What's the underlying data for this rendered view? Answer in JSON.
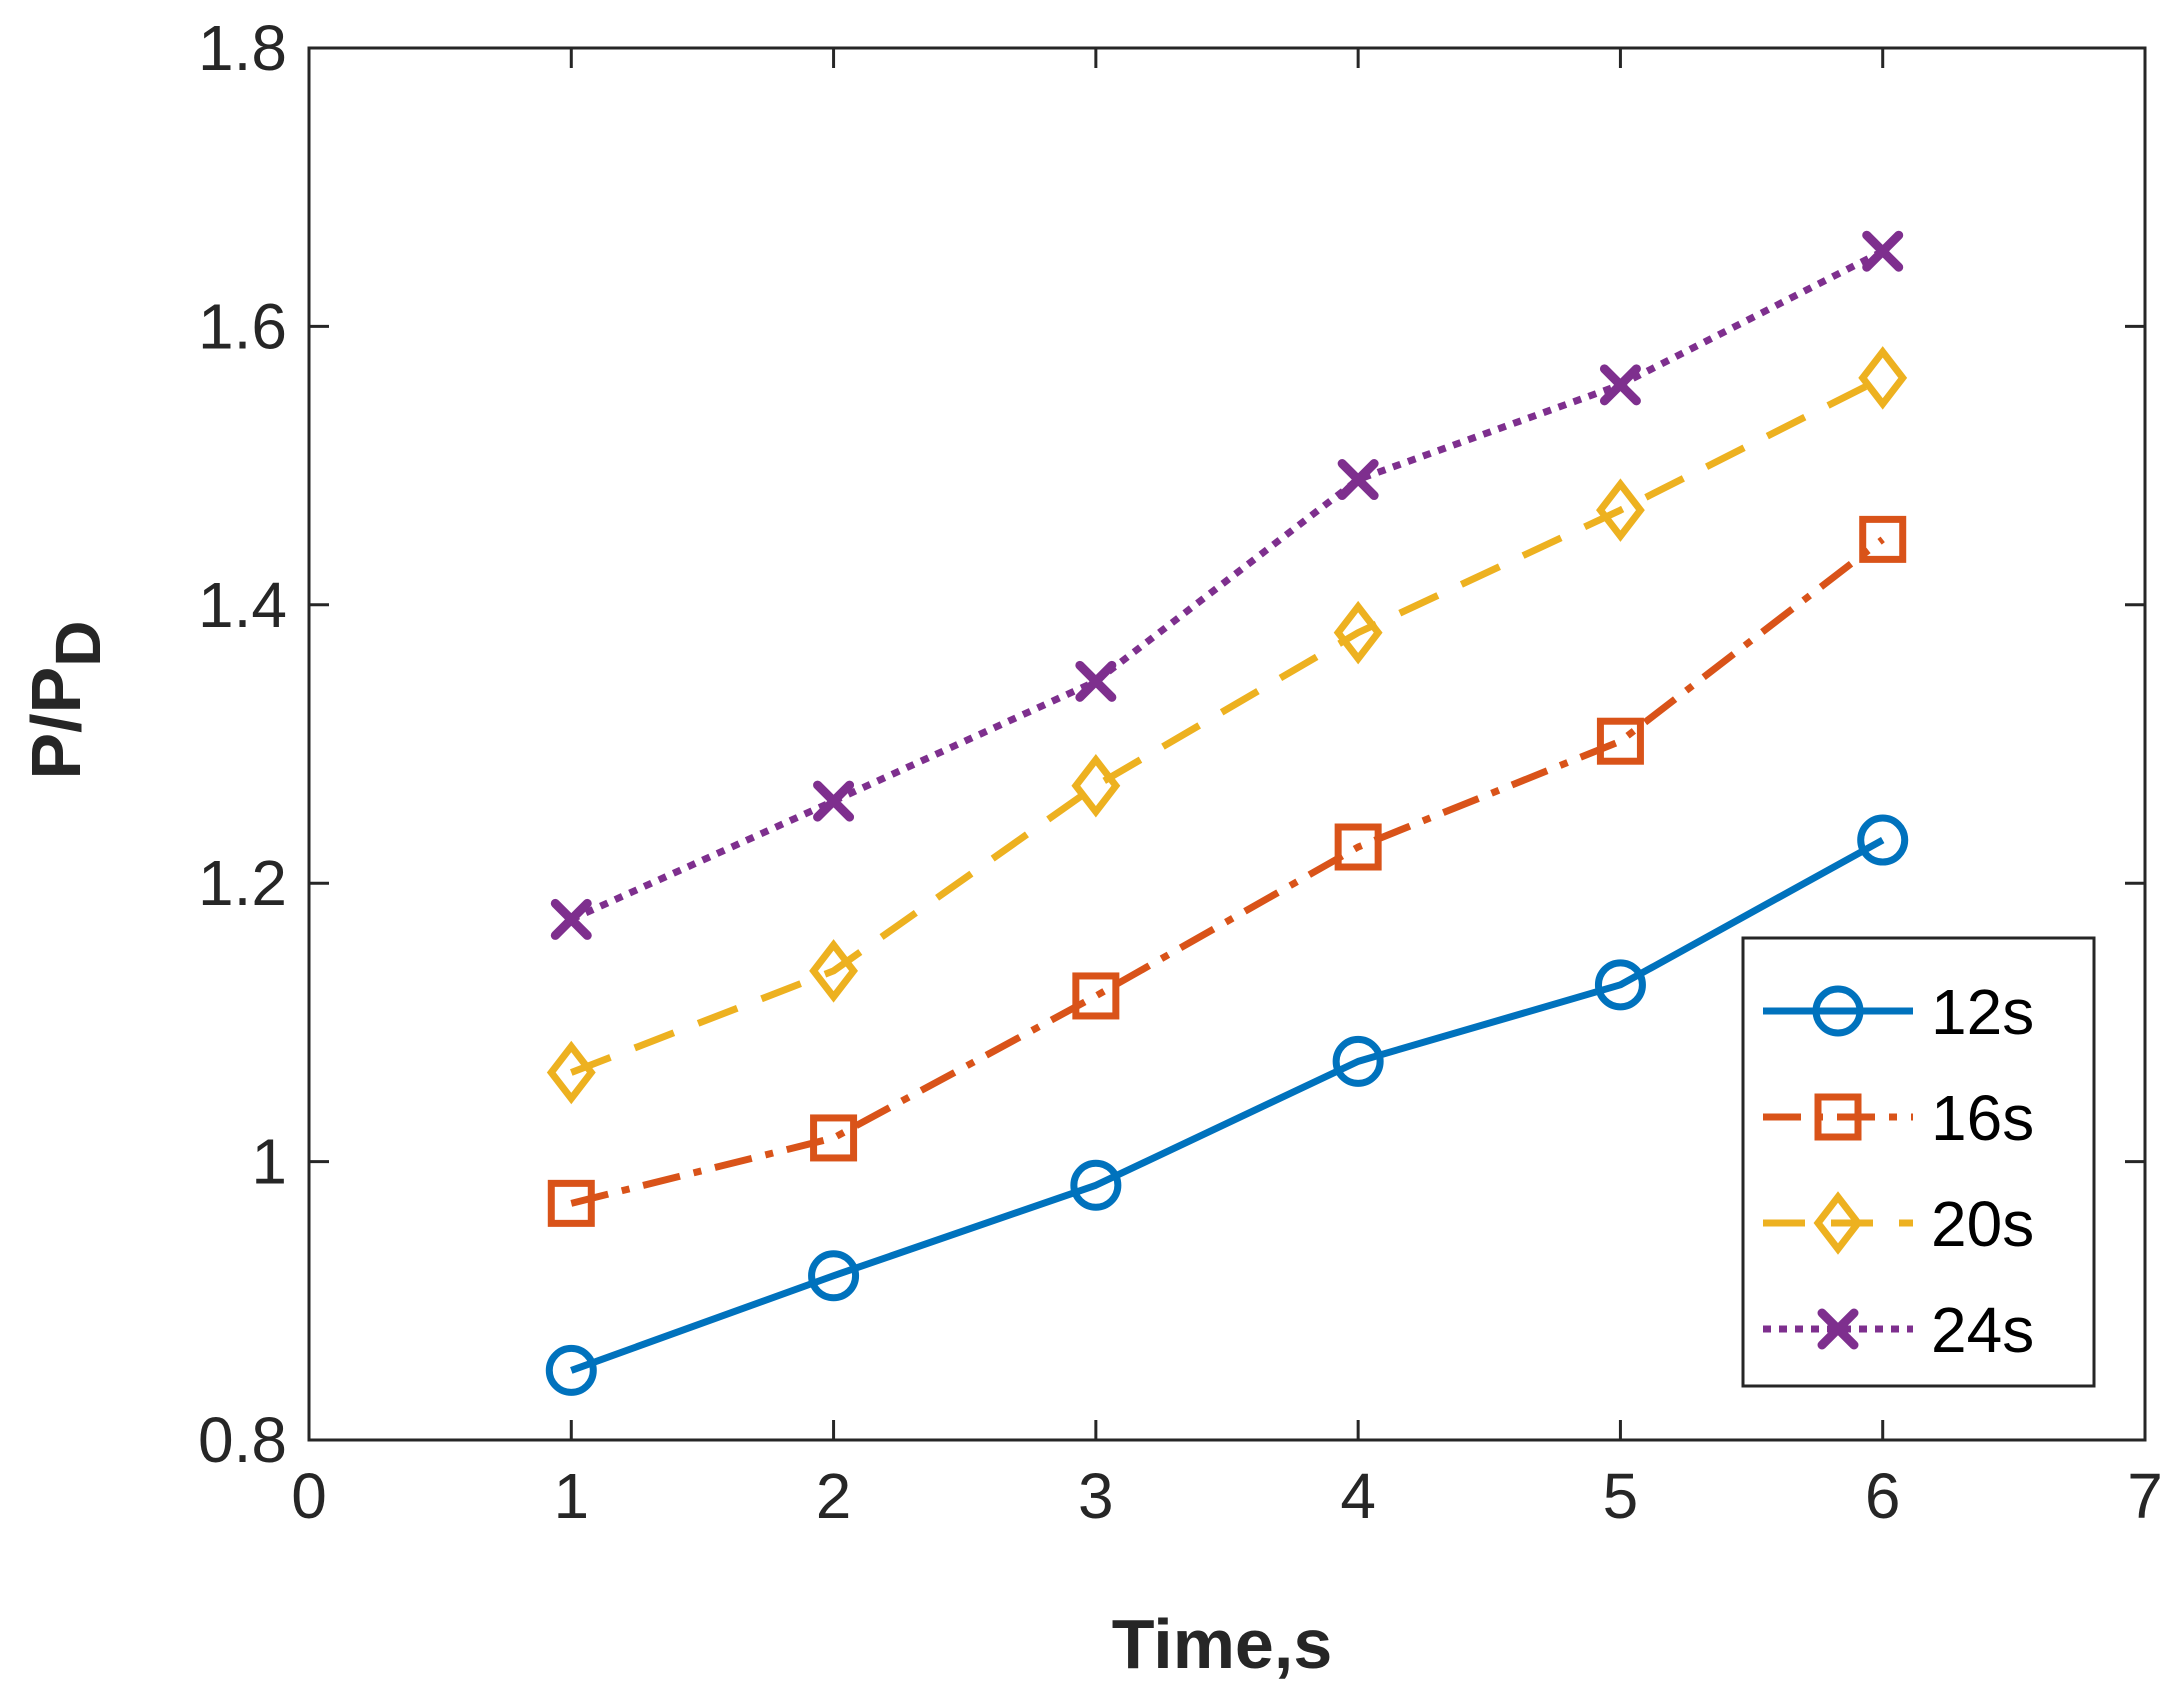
{
  "chart_data": {
    "type": "line",
    "title": "",
    "xlabel": "Time,s",
    "ylabel_main": "P/P",
    "ylabel_sub": "D",
    "xlim": [
      0,
      7
    ],
    "ylim": [
      0.8,
      1.8
    ],
    "xticks": [
      0,
      1,
      2,
      3,
      4,
      5,
      6,
      7
    ],
    "yticks": [
      0.8,
      1.0,
      1.2,
      1.4,
      1.6,
      1.8
    ],
    "xtick_labels": [
      "0",
      "1",
      "2",
      "3",
      "4",
      "5",
      "6",
      "7"
    ],
    "ytick_labels": [
      "0.8",
      "1",
      "1.2",
      "1.4",
      "1.6",
      "1.8"
    ],
    "grid": false,
    "legend_position": "lower-right",
    "x": [
      1,
      2,
      3,
      4,
      5,
      6
    ],
    "series": [
      {
        "name": "12s",
        "values": [
          0.85,
          0.918,
          0.983,
          1.072,
          1.127,
          1.231
        ],
        "color": "#0072BD",
        "marker": "circle",
        "dash": "solid"
      },
      {
        "name": "16s",
        "values": [
          0.97,
          1.017,
          1.119,
          1.226,
          1.302,
          1.447
        ],
        "color": "#D95319",
        "marker": "square",
        "dash": "dashdot"
      },
      {
        "name": "20s",
        "values": [
          1.064,
          1.137,
          1.27,
          1.38,
          1.468,
          1.563
        ],
        "color": "#EDB120",
        "marker": "diamond",
        "dash": "dashed"
      },
      {
        "name": "24s",
        "values": [
          1.174,
          1.259,
          1.345,
          1.49,
          1.558,
          1.654
        ],
        "color": "#7E2F8E",
        "marker": "x",
        "dash": "dotted"
      }
    ]
  }
}
